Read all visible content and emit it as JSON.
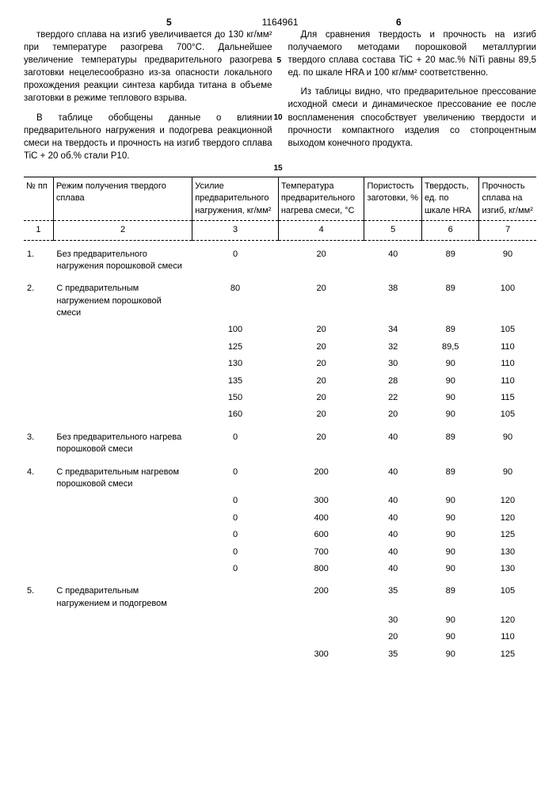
{
  "docNumber": "1164961",
  "leftColNum": "5",
  "rightColNum": "6",
  "leftParagraphs": [
    "твердого сплава на изгиб увеличивается до 130 кг/мм² при температуре разогрева 700°С. Дальнейшее увеличение температуры предварительного разогрева заготовки нецелесообразно из-за опасности локального прохождения реакции синтеза карбида титана в объеме заготовки в режиме теплового взрыва.",
    "В таблице обобщены данные о влиянии предварительного нагружения и подогрева реакционной смеси на твердость и прочность на изгиб твердого сплава TiC + 20 об.% стали Р10."
  ],
  "rightParagraphs": [
    "Для сравнения твердость и прочность на изгиб получаемого методами порошковой металлургии твердого сплава состава TiC + 20 мас.% NiTi равны 89,5 ед. по шкале HRA и 100 кг/мм² соответственно.",
    "Из таблицы видно, что предварительное прессование исходной смеси и динамическое прессование ее после воспламенения способствует увеличению твердости и прочности компактного изделия со стопроцентным выходом конечного продукта."
  ],
  "lineMarkers": {
    "m5": "5",
    "m10": "10",
    "m15": "15"
  },
  "headers": {
    "c1": "№ пп",
    "c2": "Режим получения твердого сплава",
    "c3": "Усилие предварительного нагружения, кг/мм²",
    "c4": "Температура предварительного нагрева смеси, °С",
    "c5": "Пористость заготовки, %",
    "c6": "Твердость, ед. по шкале HRA",
    "c7": "Прочность сплава на изгиб, кг/мм²"
  },
  "numRow": {
    "c1": "1",
    "c2": "2",
    "c3": "3",
    "c4": "4",
    "c5": "5",
    "c6": "6",
    "c7": "7"
  },
  "rows": [
    {
      "idx": "1.",
      "desc": "Без предварительного нагружения порошковой смеси",
      "c3": "0",
      "c4": "20",
      "c5": "40",
      "c6": "89",
      "c7": "90"
    },
    {
      "idx": "2.",
      "desc": "С предварительным нагружением порошковой смеси",
      "c3": "80",
      "c4": "20",
      "c5": "38",
      "c6": "89",
      "c7": "100"
    },
    {
      "idx": "",
      "desc": "",
      "c3": "100",
      "c4": "20",
      "c5": "34",
      "c6": "89",
      "c7": "105"
    },
    {
      "idx": "",
      "desc": "",
      "c3": "125",
      "c4": "20",
      "c5": "32",
      "c6": "89,5",
      "c7": "110"
    },
    {
      "idx": "",
      "desc": "",
      "c3": "130",
      "c4": "20",
      "c5": "30",
      "c6": "90",
      "c7": "110"
    },
    {
      "idx": "",
      "desc": "",
      "c3": "135",
      "c4": "20",
      "c5": "28",
      "c6": "90",
      "c7": "110"
    },
    {
      "idx": "",
      "desc": "",
      "c3": "150",
      "c4": "20",
      "c5": "22",
      "c6": "90",
      "c7": "115"
    },
    {
      "idx": "",
      "desc": "",
      "c3": "160",
      "c4": "20",
      "c5": "20",
      "c6": "90",
      "c7": "105"
    },
    {
      "idx": "3.",
      "desc": "Без предварительного нагрева порошковой смеси",
      "c3": "0",
      "c4": "20",
      "c5": "40",
      "c6": "89",
      "c7": "90"
    },
    {
      "idx": "4.",
      "desc": "С предварительным нагревом порошковой смеси",
      "c3": "0",
      "c4": "200",
      "c5": "40",
      "c6": "89",
      "c7": "90"
    },
    {
      "idx": "",
      "desc": "",
      "c3": "0",
      "c4": "300",
      "c5": "40",
      "c6": "90",
      "c7": "120"
    },
    {
      "idx": "",
      "desc": "",
      "c3": "0",
      "c4": "400",
      "c5": "40",
      "c6": "90",
      "c7": "120"
    },
    {
      "idx": "",
      "desc": "",
      "c3": "0",
      "c4": "600",
      "c5": "40",
      "c6": "90",
      "c7": "125"
    },
    {
      "idx": "",
      "desc": "",
      "c3": "0",
      "c4": "700",
      "c5": "40",
      "c6": "90",
      "c7": "130"
    },
    {
      "idx": "",
      "desc": "",
      "c3": "0",
      "c4": "800",
      "c5": "40",
      "c6": "90",
      "c7": "130"
    },
    {
      "idx": "5.",
      "desc": "С предварительным нагружением и подогревом",
      "c3": "",
      "c4": "200",
      "c5": "35",
      "c6": "89",
      "c7": "105"
    },
    {
      "idx": "",
      "desc": "",
      "c3": "",
      "c4": "",
      "c5": "30",
      "c6": "90",
      "c7": "120"
    },
    {
      "idx": "",
      "desc": "",
      "c3": "",
      "c4": "",
      "c5": "20",
      "c6": "90",
      "c7": "110"
    },
    {
      "idx": "",
      "desc": "",
      "c3": "",
      "c4": "300",
      "c5": "35",
      "c6": "90",
      "c7": "125"
    }
  ]
}
